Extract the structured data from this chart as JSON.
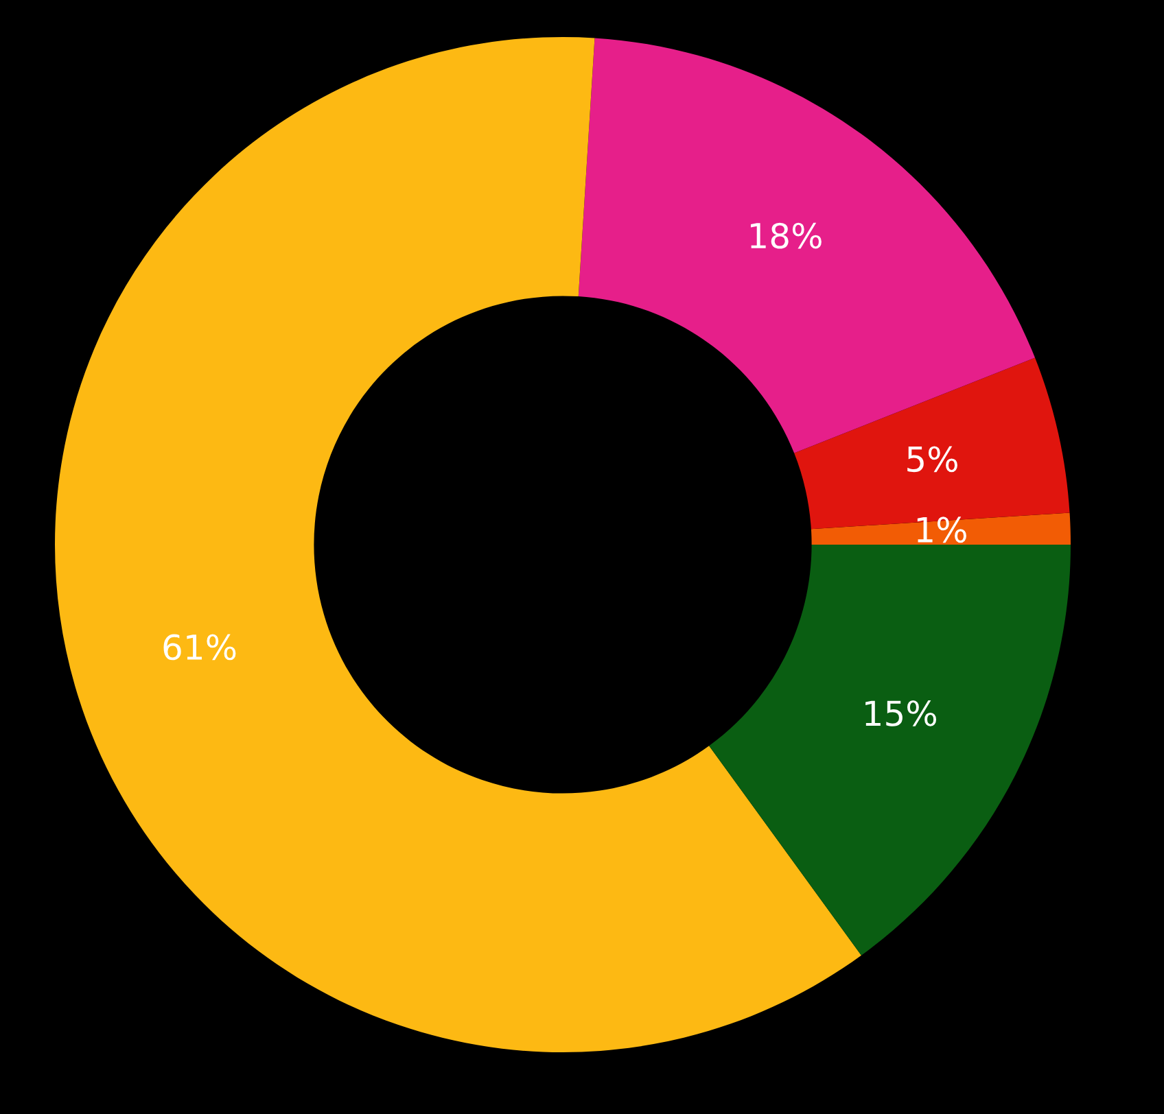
{
  "chart_data": {
    "type": "donut",
    "categories": [
      null,
      null,
      null,
      null,
      null
    ],
    "values": [
      1,
      5,
      18,
      61,
      15
    ],
    "colors": [
      "#f25c05",
      "#e0150e",
      "#e61f8a",
      "#fdb913",
      "#0a5e12"
    ],
    "value_labels": [
      "1%",
      "5%",
      "18%",
      "61%",
      "15%"
    ]
  }
}
